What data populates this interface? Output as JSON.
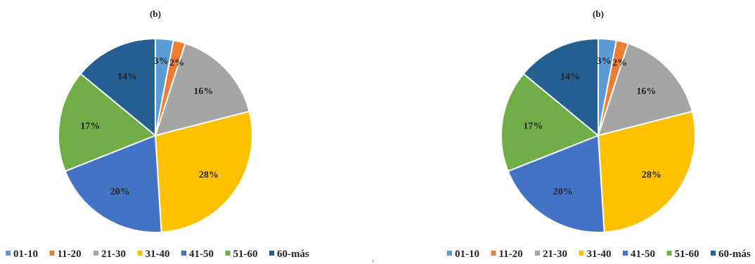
{
  "chart_data": [
    {
      "type": "pie",
      "title": "(b)",
      "categories": [
        "01-10",
        "11-20",
        "21-30",
        "31-40",
        "41-50",
        "51-60",
        "60-más"
      ],
      "values": [
        3,
        2,
        16,
        28,
        20,
        17,
        14
      ],
      "labels": [
        "3%",
        "2%",
        "16%",
        "28%",
        "20%",
        "17%",
        "14%"
      ],
      "colors": [
        "#5B9BD5",
        "#ED7D31",
        "#A5A5A5",
        "#FFC000",
        "#4472C4",
        "#70AD47",
        "#255E91"
      ],
      "legend": "bottom"
    },
    {
      "type": "pie",
      "title": "(b)",
      "categories": [
        "01-10",
        "11-20",
        "21-30",
        "31-40",
        "41-50",
        "51-60",
        "60-más"
      ],
      "values": [
        3,
        2,
        16,
        28,
        20,
        17,
        14
      ],
      "labels": [
        "3%",
        "2%",
        "16%",
        "28%",
        "20%",
        "17%",
        "14%"
      ],
      "colors": [
        "#5B9BD5",
        "#ED7D31",
        "#A5A5A5",
        "#FFC000",
        "#4472C4",
        "#70AD47",
        "#255E91"
      ],
      "legend": "bottom"
    }
  ],
  "stray_mark": "."
}
